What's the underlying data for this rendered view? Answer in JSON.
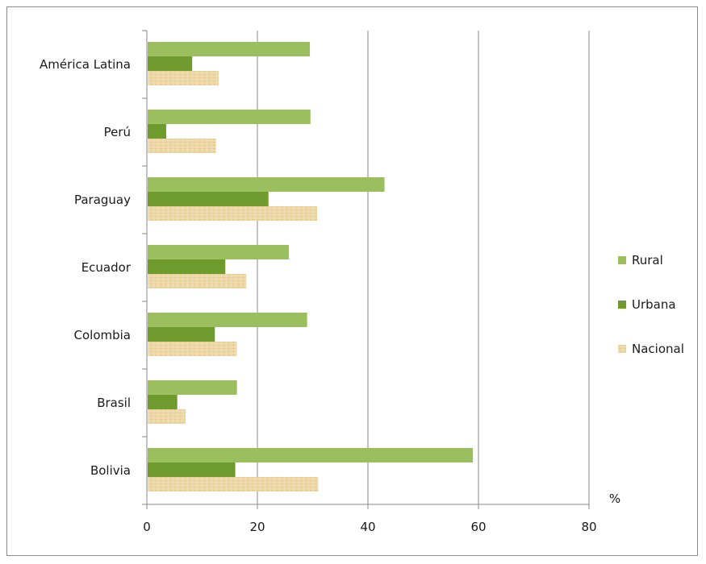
{
  "chart_data": {
    "type": "bar",
    "orientation": "horizontal",
    "categories": [
      "Bolivia",
      "Brasil",
      "Colombia",
      "Ecuador",
      "Paraguay",
      "Perú",
      "América Latina"
    ],
    "series": [
      {
        "name": "Nacional",
        "color": "#ebd6a4",
        "values": [
          31,
          7,
          16.3,
          18,
          30.8,
          12.5,
          13
        ]
      },
      {
        "name": "Urbana",
        "color": "#6e9a2e",
        "values": [
          16,
          5.5,
          12.3,
          14.2,
          22,
          3.5,
          8.2
        ]
      },
      {
        "name": "Rural",
        "color": "#9bbf5e",
        "values": [
          59,
          16.3,
          29,
          25.7,
          43,
          29.6,
          29.5
        ]
      }
    ],
    "xlim": [
      0,
      80
    ],
    "xticks": [
      "0",
      "20",
      "40",
      "60",
      "80"
    ],
    "unit_label": "%",
    "grid": true,
    "legend": {
      "placement": "right",
      "order": [
        "Rural",
        "Urbana",
        "Nacional"
      ]
    }
  }
}
